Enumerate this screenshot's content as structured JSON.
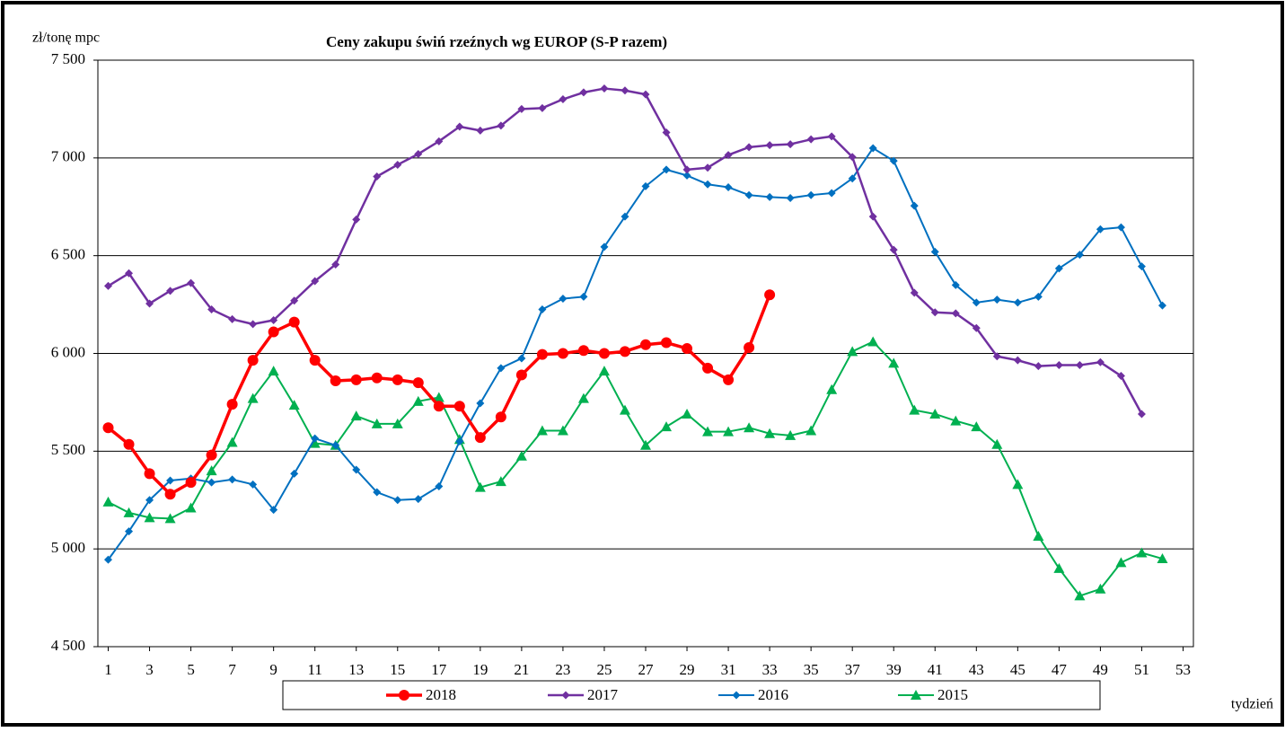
{
  "chart_data": {
    "type": "line",
    "title": "Ceny zakupu świń rzeźnych  wg EUROP (S-P razem)",
    "y_label": "zł/tonę  mpc",
    "x_label": "tydzień",
    "x": [
      1,
      2,
      3,
      4,
      5,
      6,
      7,
      8,
      9,
      10,
      11,
      12,
      13,
      14,
      15,
      16,
      17,
      18,
      19,
      20,
      21,
      22,
      23,
      24,
      25,
      26,
      27,
      28,
      29,
      30,
      31,
      32,
      33,
      34,
      35,
      36,
      37,
      38,
      39,
      40,
      41,
      42,
      43,
      44,
      45,
      46,
      47,
      48,
      49,
      50,
      51,
      52
    ],
    "xlim": [
      0.5,
      53.5
    ],
    "xticks": [
      1,
      3,
      5,
      7,
      9,
      11,
      13,
      15,
      17,
      19,
      21,
      23,
      25,
      27,
      29,
      31,
      33,
      35,
      37,
      39,
      41,
      43,
      45,
      47,
      49,
      51,
      53
    ],
    "ylim": [
      4500,
      7500
    ],
    "yticks": [
      {
        "value": 4500,
        "label": "4 500"
      },
      {
        "value": 5000,
        "label": "5 000"
      },
      {
        "value": 5500,
        "label": "5 500"
      },
      {
        "value": 6000,
        "label": "6 000"
      },
      {
        "value": 6500,
        "label": "6 500"
      },
      {
        "value": 7000,
        "label": "7 000"
      },
      {
        "value": 7500,
        "label": "7 500"
      }
    ],
    "grid": true,
    "legend": "bottom",
    "series": [
      {
        "name": "2018",
        "color": "#ff0000",
        "marker": "circle",
        "width": 3.5,
        "values": [
          5620,
          5535,
          5385,
          5280,
          5340,
          5480,
          5740,
          5965,
          6110,
          6160,
          5965,
          5860,
          5865,
          5875,
          5865,
          5850,
          5730,
          5730,
          5570,
          5675,
          5890,
          5995,
          6000,
          6015,
          6000,
          6010,
          6045,
          6055,
          6025,
          5925,
          5865,
          6030,
          6300,
          null,
          null,
          null,
          null,
          null,
          null,
          null,
          null,
          null,
          null,
          null,
          null,
          null,
          null,
          null,
          null,
          null,
          null,
          null
        ]
      },
      {
        "name": "2017",
        "color": "#7030a0",
        "marker": "diamond",
        "width": 2.5,
        "values": [
          6345,
          6410,
          6255,
          6320,
          6360,
          6225,
          6175,
          6150,
          6170,
          6270,
          6370,
          6455,
          6685,
          6905,
          6965,
          7020,
          7085,
          7160,
          7140,
          7165,
          7250,
          7255,
          7300,
          7335,
          7355,
          7345,
          7325,
          7130,
          6940,
          6950,
          7015,
          7055,
          7065,
          7070,
          7095,
          7110,
          7005,
          6700,
          6530,
          6310,
          6210,
          6205,
          6130,
          5985,
          5965,
          5935,
          5940,
          5940,
          5955,
          5885,
          5690,
          null
        ]
      },
      {
        "name": "2016",
        "color": "#0070c0",
        "marker": "diamond",
        "width": 2,
        "values": [
          4945,
          5090,
          5250,
          5350,
          5360,
          5340,
          5355,
          5330,
          5200,
          5385,
          5565,
          5530,
          5405,
          5290,
          5250,
          5255,
          5320,
          5550,
          5745,
          5925,
          5975,
          6225,
          6280,
          6290,
          6545,
          6700,
          6855,
          6940,
          6910,
          6865,
          6850,
          6810,
          6800,
          6795,
          6810,
          6820,
          6895,
          7050,
          6985,
          6755,
          6520,
          6350,
          6260,
          6275,
          6260,
          6290,
          6435,
          6505,
          6635,
          6645,
          6445,
          6245
        ]
      },
      {
        "name": "2015",
        "color": "#00b050",
        "marker": "triangle",
        "width": 2,
        "values": [
          5240,
          5185,
          5160,
          5155,
          5210,
          5400,
          5545,
          5770,
          5910,
          5735,
          5540,
          5530,
          5680,
          5640,
          5640,
          5755,
          5775,
          5560,
          5315,
          5345,
          5475,
          5605,
          5605,
          5770,
          5910,
          5710,
          5530,
          5625,
          5690,
          5600,
          5600,
          5620,
          5590,
          5580,
          5605,
          5815,
          6010,
          6060,
          5950,
          5710,
          5690,
          5655,
          5625,
          5535,
          5330,
          5065,
          4900,
          4760,
          4795,
          4930,
          4980,
          4950
        ]
      }
    ]
  }
}
